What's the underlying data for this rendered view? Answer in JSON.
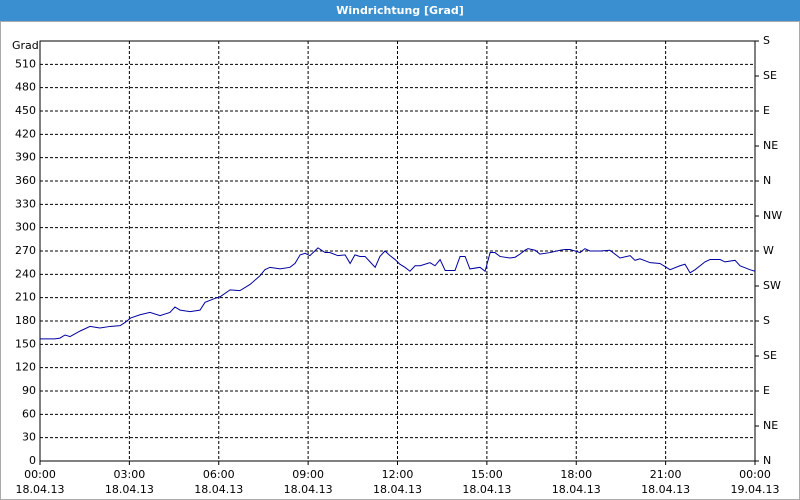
{
  "chart_data": {
    "type": "line",
    "title": "Windrichtung [Grad]",
    "ylabel": "Grad",
    "xlim": [
      0,
      24
    ],
    "xticks": [
      {
        "value": 0,
        "label": "00:00\n18.04.13"
      },
      {
        "value": 3,
        "label": "03:00\n18.04.13"
      },
      {
        "value": 6,
        "label": "06:00\n18.04.13"
      },
      {
        "value": 9,
        "label": "09:00\n18.04.13"
      },
      {
        "value": 12,
        "label": "12:00\n18.04.13"
      },
      {
        "value": 15,
        "label": "15:00\n18.04.13"
      },
      {
        "value": 18,
        "label": "18:00\n18.04.13"
      },
      {
        "value": 21,
        "label": "21:00\n18.04.13"
      },
      {
        "value": 24,
        "label": "00:00\n19.04.13"
      }
    ],
    "ylim": [
      0,
      540
    ],
    "yticks": [
      0,
      30,
      60,
      90,
      120,
      150,
      180,
      210,
      240,
      270,
      300,
      330,
      360,
      390,
      420,
      450,
      480,
      510
    ],
    "y2lim": [
      0,
      540
    ],
    "y2ticks": [
      {
        "value": 0,
        "label": "N"
      },
      {
        "value": 45,
        "label": "NE"
      },
      {
        "value": 90,
        "label": "E"
      },
      {
        "value": 135,
        "label": "SE"
      },
      {
        "value": 180,
        "label": "S"
      },
      {
        "value": 225,
        "label": "SW"
      },
      {
        "value": 270,
        "label": "W"
      },
      {
        "value": 315,
        "label": "NW"
      },
      {
        "value": 360,
        "label": "N"
      },
      {
        "value": 405,
        "label": "NE"
      },
      {
        "value": 450,
        "label": "E"
      },
      {
        "value": 495,
        "label": "SE"
      },
      {
        "value": 540,
        "label": "S"
      }
    ],
    "grid": true,
    "color": "#0000a0",
    "x": [
      0,
      0.5,
      0.67,
      0.84,
      1.01,
      1.34,
      1.68,
      2.01,
      2.35,
      2.69,
      2.85,
      3.05,
      3.36,
      3.69,
      4.03,
      4.36,
      4.53,
      4.7,
      5.04,
      5.37,
      5.54,
      5.87,
      6.04,
      6.38,
      6.71,
      7.05,
      7.38,
      7.55,
      7.72,
      8.06,
      8.39,
      8.56,
      8.73,
      8.9,
      9.06,
      9.33,
      9.57,
      9.73,
      10.0,
      10.24,
      10.41,
      10.57,
      10.74,
      10.91,
      11.08,
      11.25,
      11.41,
      11.58,
      11.75,
      11.92,
      12.08,
      12.25,
      12.42,
      12.59,
      12.76,
      13.09,
      13.26,
      13.43,
      13.6,
      13.93,
      14.1,
      14.27,
      14.43,
      14.77,
      14.94,
      15.11,
      15.27,
      15.44,
      15.78,
      15.95,
      16.11,
      16.28,
      16.38,
      16.62,
      16.78,
      17.12,
      17.46,
      17.62,
      17.79,
      18.13,
      18.29,
      18.46,
      18.8,
      19.13,
      19.47,
      19.81,
      19.97,
      20.14,
      20.48,
      20.81,
      21.15,
      21.48,
      21.65,
      21.82,
      21.99,
      22.32,
      22.49,
      22.83,
      22.99,
      23.33,
      23.5,
      23.83,
      24
    ],
    "values": [
      157,
      157,
      158,
      162,
      160,
      167,
      173,
      171,
      173,
      174,
      178,
      184,
      188,
      191,
      187,
      191,
      198,
      194,
      192,
      194,
      204,
      209,
      211,
      220,
      219,
      227,
      238,
      246,
      249,
      247,
      249,
      254,
      265,
      267,
      264,
      274,
      268,
      268,
      264,
      265,
      254,
      265,
      263,
      263,
      256,
      249,
      263,
      270,
      264,
      259,
      253,
      249,
      244,
      251,
      251,
      255,
      251,
      259,
      245,
      245,
      263,
      263,
      247,
      249,
      244,
      268,
      268,
      263,
      261,
      262,
      266,
      271,
      273,
      271,
      266,
      268,
      271,
      272,
      272,
      268,
      273,
      270,
      270,
      271,
      261,
      264,
      258,
      260,
      255,
      254,
      246,
      251,
      253,
      242,
      246,
      256,
      259,
      259,
      256,
      258,
      251,
      246,
      244
    ]
  }
}
